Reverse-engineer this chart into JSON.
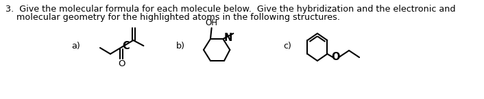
{
  "title_line1": "3.  Give the molecular formula for each molecule below.  Give the hybridization and the electronic and",
  "title_line2": "    molecular geometry for the highlighted atoms in the following structures.",
  "label_a": "a)",
  "label_b": "b)",
  "label_c": "c)",
  "bg_color": "#ffffff",
  "text_color": "#000000",
  "font_size_title": 9.2,
  "font_size_label": 9.2
}
